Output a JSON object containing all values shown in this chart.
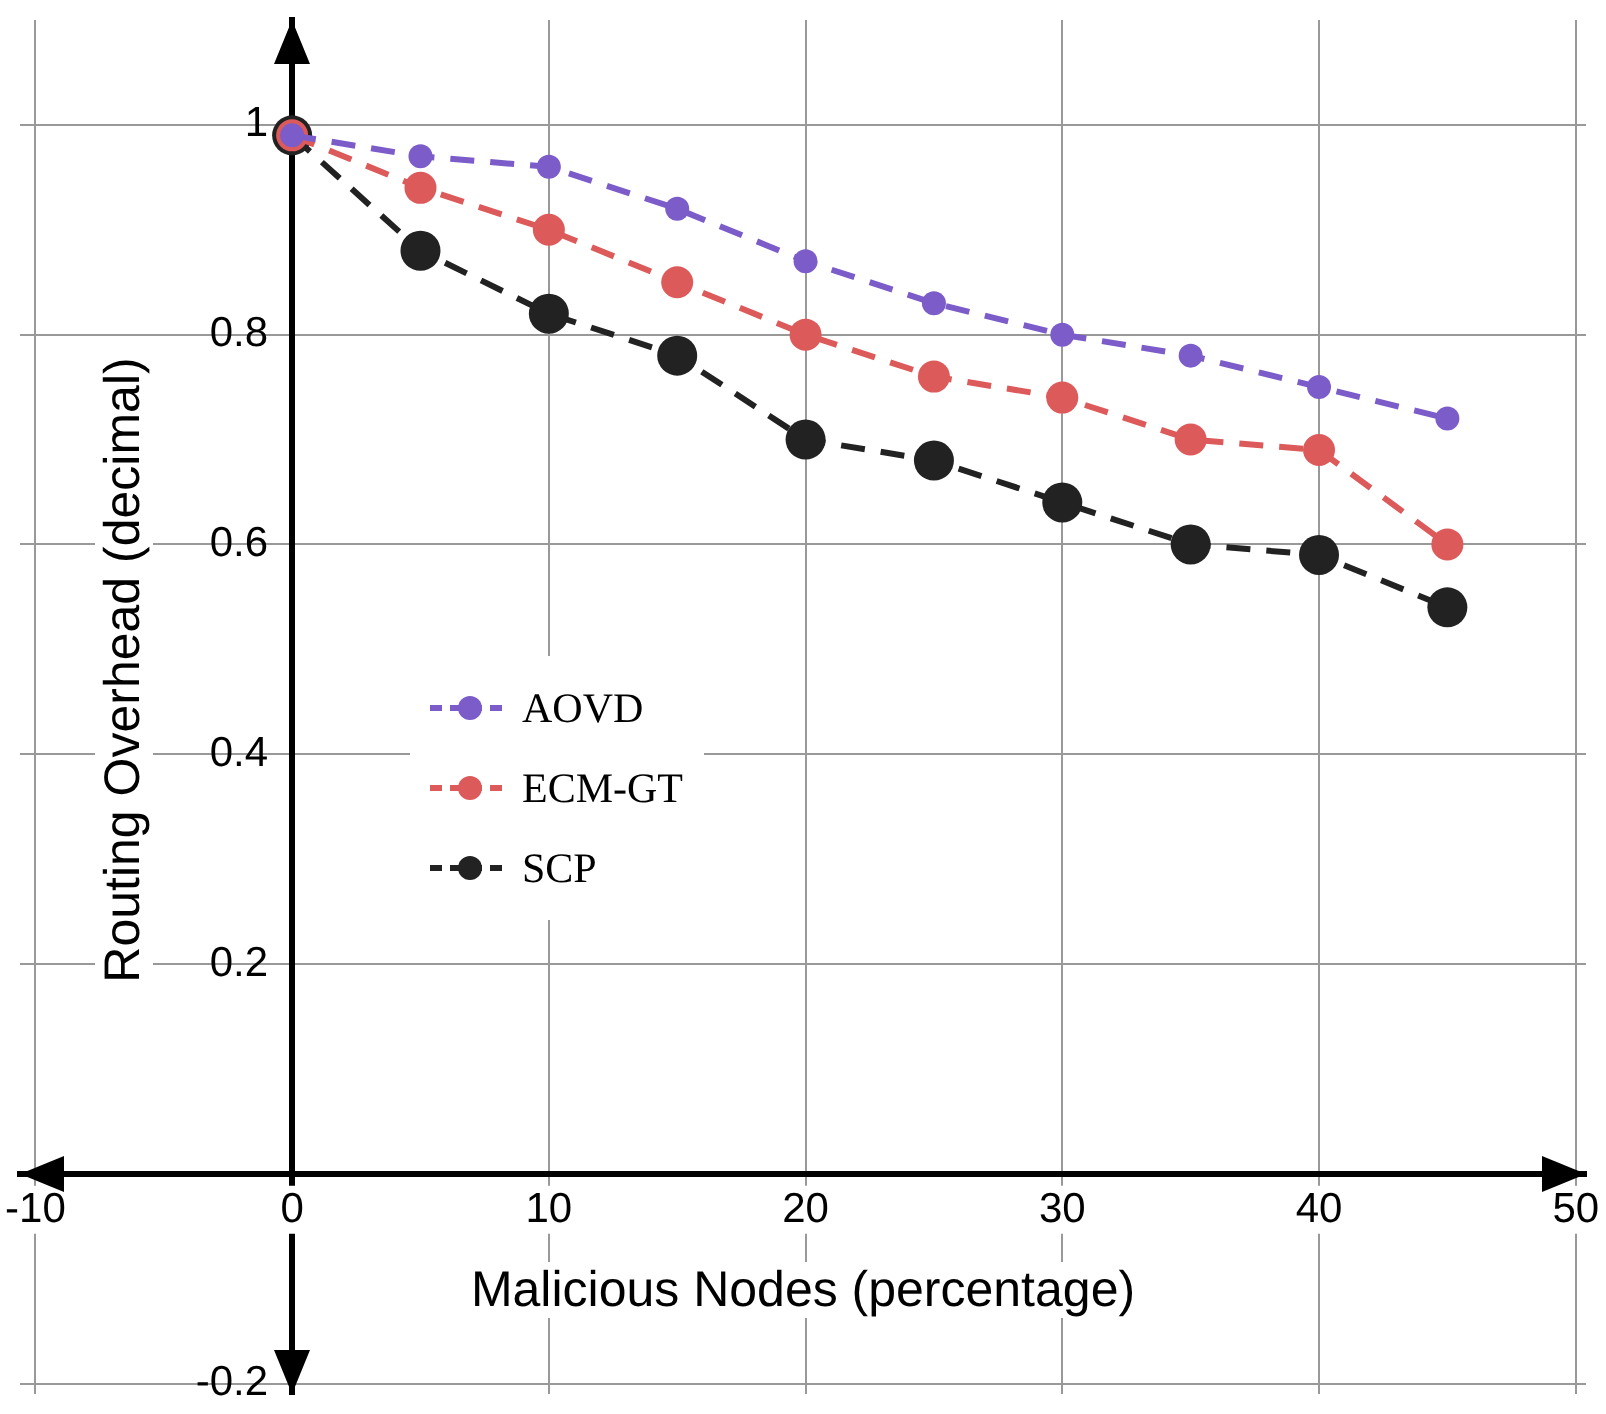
{
  "chart_data": {
    "type": "line",
    "xlabel": "Malicious Nodes (percentage)",
    "ylabel": "Routing Overhead (decimal)",
    "x": [
      0,
      5,
      10,
      15,
      20,
      25,
      30,
      35,
      40,
      45
    ],
    "series": [
      {
        "name": "AOVD",
        "color": "#7b5cc9",
        "values": [
          0.99,
          0.97,
          0.96,
          0.92,
          0.87,
          0.83,
          0.8,
          0.78,
          0.75,
          0.72
        ]
      },
      {
        "name": "ECM-GT",
        "color": "#dd5a5a",
        "values": [
          0.99,
          0.94,
          0.9,
          0.85,
          0.8,
          0.76,
          0.74,
          0.7,
          0.69,
          0.6
        ]
      },
      {
        "name": "SCP",
        "color": "#222222",
        "values": [
          0.99,
          0.88,
          0.82,
          0.78,
          0.7,
          0.68,
          0.64,
          0.6,
          0.59,
          0.54
        ]
      }
    ],
    "xlim": [
      -10.6,
      50.4
    ],
    "xticks": [
      -10,
      0,
      10,
      20,
      30,
      40,
      50
    ],
    "ylim": [
      -0.21,
      1.1
    ],
    "yticks": [
      -0.2,
      0.2,
      0.4,
      0.6,
      0.8,
      1
    ],
    "grid": true,
    "legend": "left",
    "marker": "circle",
    "line_style": "dashed"
  }
}
